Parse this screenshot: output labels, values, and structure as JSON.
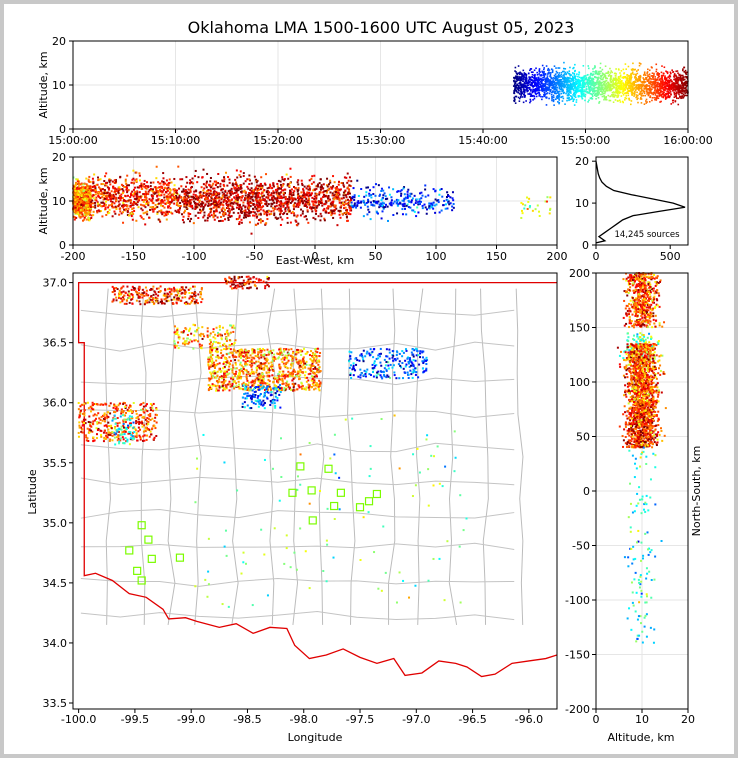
{
  "chart_data": [
    {
      "id": "time_height",
      "type": "scatter",
      "title": "Oklahoma LMA 1500-1600 UTC August 05, 2023",
      "xlabel": "",
      "ylabel": "Altitude, km",
      "xlim": [
        "15:00:00",
        "16:00:00"
      ],
      "ylim": [
        0,
        20
      ],
      "xticks": [
        "15:00:00",
        "15:10:00",
        "15:20:00",
        "15:30:00",
        "15:40:00",
        "15:50:00",
        "16:00:00"
      ],
      "yticks": [
        "0",
        "10",
        "20"
      ],
      "grid": true,
      "color_encoding": "time (jet colormap)",
      "data_time_range": [
        "15:43:00",
        "16:00:00"
      ],
      "altitude_range_km": [
        1,
        20
      ]
    },
    {
      "id": "ew_height",
      "type": "scatter",
      "xlabel": "East-West, km",
      "ylabel": "Altitude, km",
      "xlim": [
        -200,
        200
      ],
      "ylim": [
        0,
        20
      ],
      "xticks": [
        "-200",
        "-150",
        "-100",
        "-50",
        "0",
        "50",
        "100",
        "150",
        "200"
      ],
      "yticks": [
        "0",
        "10",
        "20"
      ],
      "grid": true,
      "clusters": [
        {
          "x": [
            -200,
            -185
          ],
          "y": [
            3,
            18
          ],
          "density": "high"
        },
        {
          "x": [
            -185,
            -110
          ],
          "y": [
            2,
            20
          ],
          "density": "high"
        },
        {
          "x": [
            -110,
            30
          ],
          "y": [
            1,
            20
          ],
          "density": "very high"
        },
        {
          "x": [
            30,
            115
          ],
          "y": [
            4,
            16
          ],
          "density": "medium"
        },
        {
          "x": [
            170,
            195
          ],
          "y": [
            5,
            13
          ],
          "density": "low"
        }
      ]
    },
    {
      "id": "altitude_histogram",
      "type": "line",
      "xlabel": "",
      "ylabel": "",
      "xlim": [
        0,
        620
      ],
      "ylim": [
        0,
        21
      ],
      "xticks": [
        "0",
        "500"
      ],
      "yticks": [
        "0",
        "10",
        "20"
      ],
      "annotation": "14,245 sources",
      "altitude_km": [
        0.5,
        1,
        2,
        3,
        4,
        5,
        6,
        7,
        8,
        9,
        10,
        11,
        12,
        13,
        14,
        15,
        16,
        17,
        18,
        19,
        20
      ],
      "count": [
        0,
        60,
        20,
        60,
        100,
        140,
        180,
        250,
        420,
        600,
        520,
        380,
        240,
        120,
        70,
        40,
        25,
        15,
        10,
        5,
        0
      ]
    },
    {
      "id": "plan_view",
      "type": "scatter",
      "xlabel": "Longitude",
      "ylabel": "Latitude",
      "xlim": [
        -100.05,
        -95.75
      ],
      "ylim": [
        33.45,
        37.08
      ],
      "xticks": [
        "-100.0",
        "-99.5",
        "-99.0",
        "-98.5",
        "-98.0",
        "-97.5",
        "-97.0",
        "-96.5",
        "-96.0"
      ],
      "yticks": [
        "33.5",
        "34.0",
        "34.5",
        "35.0",
        "35.5",
        "36.0",
        "36.5",
        "37.0"
      ],
      "map": "Oklahoma state and county boundaries",
      "stations": [
        {
          "lon": -98.03,
          "lat": 35.47
        },
        {
          "lon": -97.78,
          "lat": 35.45
        },
        {
          "lon": -97.93,
          "lat": 35.27
        },
        {
          "lon": -98.1,
          "lat": 35.25
        },
        {
          "lon": -97.67,
          "lat": 35.25
        },
        {
          "lon": -97.35,
          "lat": 35.24
        },
        {
          "lon": -97.42,
          "lat": 35.18
        },
        {
          "lon": -97.5,
          "lat": 35.13
        },
        {
          "lon": -97.73,
          "lat": 35.14
        },
        {
          "lon": -97.92,
          "lat": 35.02
        },
        {
          "lon": -99.44,
          "lat": 34.98
        },
        {
          "lon": -99.38,
          "lat": 34.86
        },
        {
          "lon": -99.55,
          "lat": 34.77
        },
        {
          "lon": -99.35,
          "lat": 34.7
        },
        {
          "lon": -99.1,
          "lat": 34.71
        },
        {
          "lon": -99.48,
          "lat": 34.6
        },
        {
          "lon": -99.44,
          "lat": 34.52
        }
      ]
    },
    {
      "id": "ns_height",
      "type": "scatter",
      "xlabel": "Altitude, km",
      "ylabel": "North-South, km",
      "xlim": [
        0,
        20
      ],
      "ylim": [
        -200,
        200
      ],
      "xticks": [
        "0",
        "10",
        "20"
      ],
      "yticks": [
        "-200",
        "-150",
        "-100",
        "-50",
        "0",
        "50",
        "100",
        "150",
        "200"
      ],
      "grid": true
    }
  ],
  "colors": {
    "frame_border": "#c8c8c8",
    "state_border": "#e00000",
    "county_lines": "#b8b8b8",
    "stations": "#7cfc00",
    "histogram": "#000000"
  }
}
